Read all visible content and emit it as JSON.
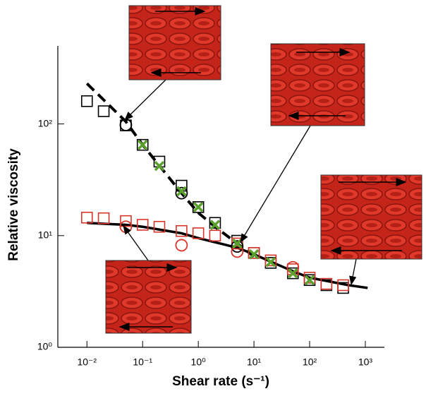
{
  "chart_data": {
    "type": "scatter",
    "xlabel": "Shear rate (s⁻¹)",
    "ylabel": "Relative viscosity",
    "log_x": true,
    "log_y": true,
    "xlim": [
      0.003,
      2200
    ],
    "ylim": [
      1,
      500
    ],
    "xticks": [
      {
        "value": 0.01,
        "label": "10⁻²"
      },
      {
        "value": 0.1,
        "label": "10⁻¹"
      },
      {
        "value": 1,
        "label": "10⁰"
      },
      {
        "value": 10,
        "label": "10¹"
      },
      {
        "value": 100,
        "label": "10²"
      },
      {
        "value": 1000,
        "label": "10³"
      }
    ],
    "yticks": [
      {
        "value": 1,
        "label": "10⁰"
      },
      {
        "value": 10,
        "label": "10¹"
      },
      {
        "value": 100,
        "label": "10²"
      }
    ],
    "series": [
      {
        "type": "line",
        "dash": true,
        "color": "#000000",
        "x": [
          0.01,
          0.05,
          0.1,
          0.5,
          1,
          2,
          5,
          10
        ],
        "values": [
          230,
          105,
          65,
          24,
          16,
          12,
          8.5,
          6.5
        ]
      },
      {
        "type": "line",
        "dash": false,
        "color": "#000000",
        "x": [
          0.01,
          0.05,
          0.1,
          0.5,
          1,
          5,
          10,
          50,
          100,
          500,
          1100
        ],
        "values": [
          13,
          12.5,
          12,
          10.5,
          9.5,
          7.8,
          6.8,
          4.8,
          4.2,
          3.6,
          3.4
        ]
      },
      {
        "marker": "square",
        "color": "#000000",
        "x": [
          0.01,
          0.02,
          0.05,
          0.1,
          0.2,
          0.5,
          1,
          2,
          5,
          10,
          20,
          50,
          100,
          200,
          400
        ],
        "values": [
          160,
          130,
          97,
          65,
          46,
          28,
          18,
          13,
          9,
          7,
          5.7,
          4.6,
          4,
          3.6,
          3.4
        ]
      },
      {
        "marker": "square",
        "color": "#d9342b",
        "x": [
          0.01,
          0.02,
          0.05,
          0.1,
          0.2,
          0.5,
          1,
          2,
          5,
          10,
          20,
          50,
          100,
          200,
          400
        ],
        "values": [
          14.5,
          14.3,
          13.5,
          12.5,
          12,
          11,
          10.5,
          10,
          8.5,
          7,
          6,
          5,
          4.2,
          3.7,
          3.6
        ]
      },
      {
        "marker": "circle",
        "color": "#000000",
        "x": [
          0.05,
          0.5,
          5
        ],
        "values": [
          98,
          24,
          8
        ]
      },
      {
        "marker": "circle",
        "color": "#d9342b",
        "x": [
          0.05,
          0.5,
          5,
          50
        ],
        "values": [
          12,
          8.2,
          7.2,
          5.2
        ]
      },
      {
        "marker": "x",
        "color": "#5aa02c",
        "x": [
          0.1,
          0.2,
          0.5,
          1,
          2,
          5,
          10,
          20,
          50,
          100
        ],
        "values": [
          65,
          42,
          25,
          18,
          12.5,
          8.5,
          6.8,
          5.8,
          4.6,
          4
        ]
      }
    ]
  }
}
